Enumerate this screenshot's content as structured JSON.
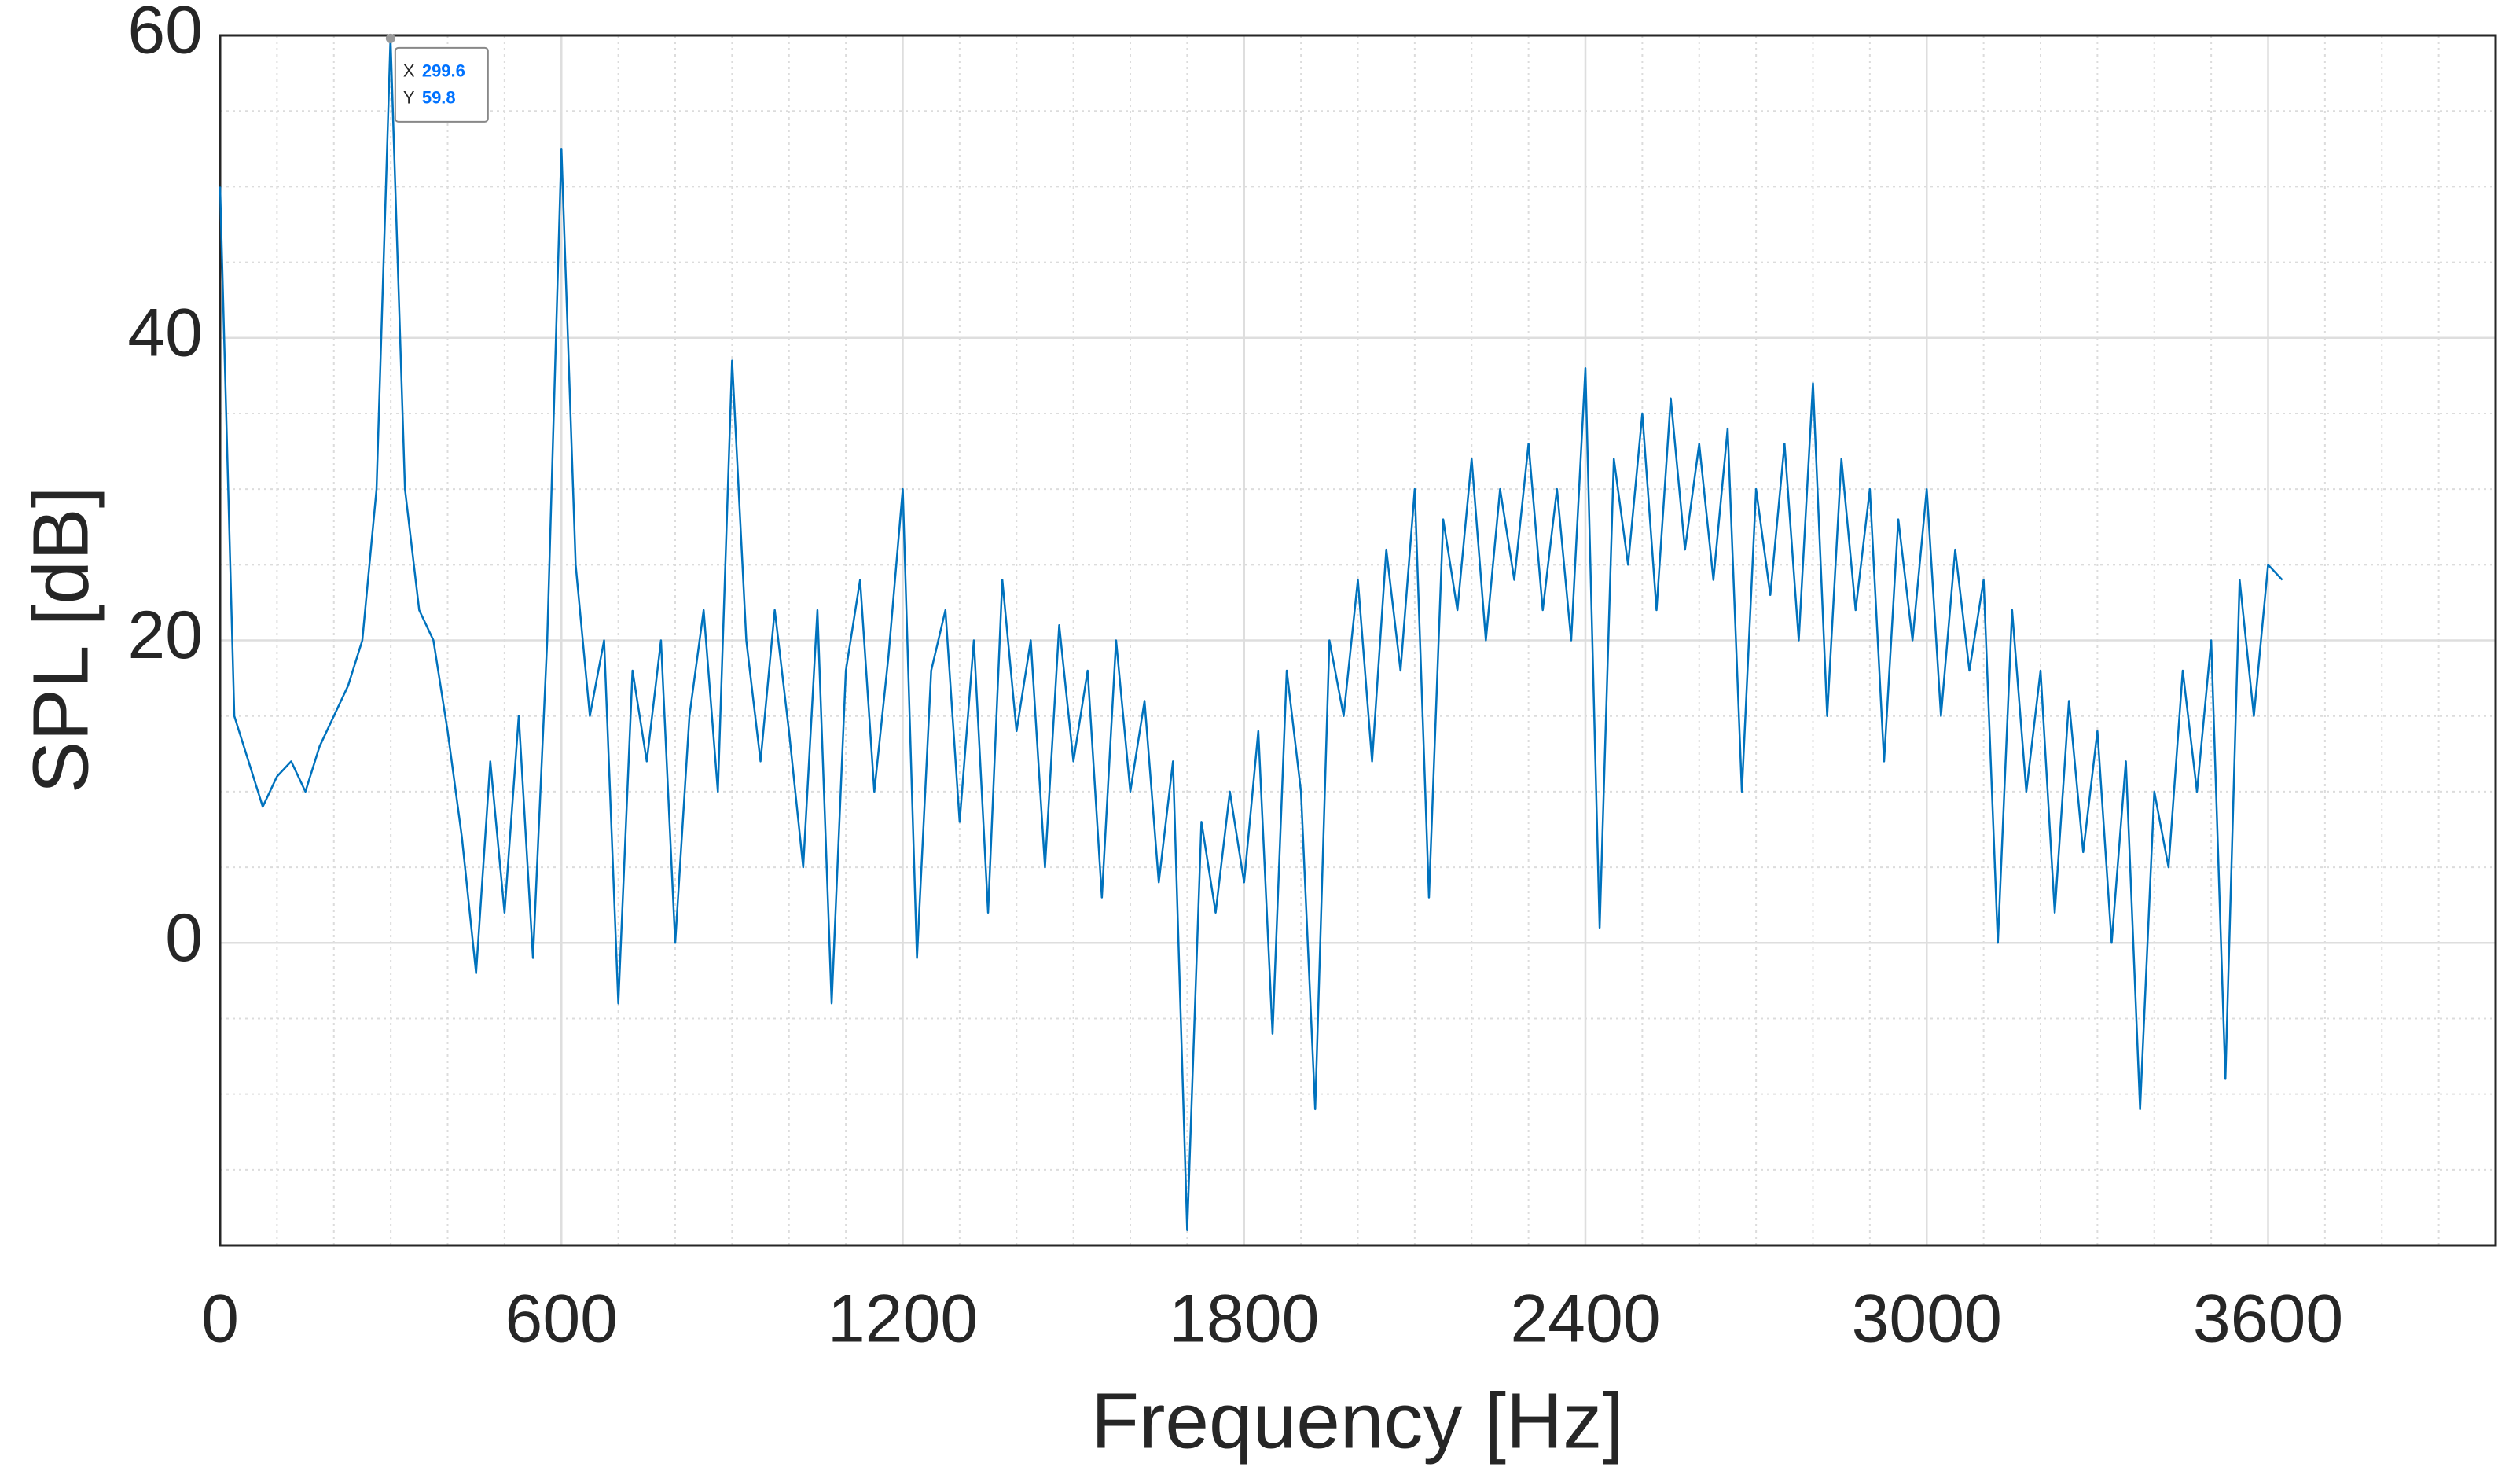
{
  "chart_data": {
    "type": "line",
    "xlabel": "Frequency [Hz]",
    "ylabel": "SPL [dB]",
    "xlim": [
      0,
      4000
    ],
    "xticks": [
      0,
      600,
      1200,
      1800,
      2400,
      3000,
      3600
    ],
    "ylim": [
      -20,
      60
    ],
    "yticks": [
      0,
      20,
      40,
      60
    ],
    "grid": true,
    "minor_grid": true,
    "series": [
      {
        "color": "#0072bd",
        "x": [
          0,
          25,
          50,
          75,
          100,
          125,
          150,
          175,
          200,
          225,
          250,
          275,
          299.6,
          325,
          350,
          375,
          400,
          425,
          450,
          475,
          500,
          525,
          550,
          575,
          600,
          625,
          650,
          675,
          700,
          725,
          750,
          775,
          800,
          825,
          850,
          875,
          900,
          925,
          950,
          975,
          1000,
          1025,
          1050,
          1075,
          1100,
          1125,
          1150,
          1175,
          1200,
          1225,
          1250,
          1275,
          1300,
          1325,
          1350,
          1375,
          1400,
          1425,
          1450,
          1475,
          1500,
          1525,
          1550,
          1575,
          1600,
          1625,
          1650,
          1675,
          1700,
          1725,
          1750,
          1775,
          1800,
          1825,
          1850,
          1875,
          1900,
          1925,
          1950,
          1975,
          2000,
          2025,
          2050,
          2075,
          2100,
          2125,
          2150,
          2175,
          2200,
          2225,
          2250,
          2275,
          2300,
          2325,
          2350,
          2375,
          2400,
          2425,
          2450,
          2475,
          2500,
          2525,
          2550,
          2575,
          2600,
          2625,
          2650,
          2675,
          2700,
          2725,
          2750,
          2775,
          2800,
          2825,
          2850,
          2875,
          2900,
          2925,
          2950,
          2975,
          3000,
          3025,
          3050,
          3075,
          3100,
          3125,
          3150,
          3175,
          3200,
          3225,
          3250,
          3275,
          3300,
          3325,
          3350,
          3375,
          3400,
          3425,
          3450,
          3475,
          3500,
          3525,
          3550,
          3575,
          3600,
          3625
        ],
        "values": [
          50,
          15,
          12,
          9,
          11,
          12,
          10,
          13,
          15,
          17,
          20,
          30,
          59.8,
          30,
          22,
          20,
          14,
          7,
          -2,
          12,
          2,
          15,
          -1,
          20,
          52.5,
          25,
          15,
          20,
          -4,
          18,
          12,
          20,
          0,
          15,
          22,
          10,
          38.5,
          20,
          12,
          22,
          14,
          5,
          22,
          -4,
          18,
          24,
          10,
          19,
          30,
          -1,
          18,
          22,
          8,
          20,
          2,
          24,
          14,
          20,
          5,
          21,
          12,
          18,
          3,
          20,
          10,
          16,
          4,
          12,
          -19,
          8,
          2,
          10,
          4,
          14,
          -6,
          18,
          10,
          -11,
          20,
          15,
          24,
          12,
          26,
          18,
          30,
          3,
          28,
          22,
          32,
          20,
          30,
          24,
          33,
          22,
          30,
          20,
          38,
          1,
          32,
          25,
          35,
          22,
          36,
          26,
          33,
          24,
          34,
          10,
          30,
          23,
          33,
          20,
          37,
          15,
          32,
          22,
          30,
          12,
          28,
          20,
          30,
          15,
          26,
          18,
          24,
          0,
          22,
          10,
          18,
          2,
          16,
          6,
          14,
          0,
          12,
          -11,
          10,
          5,
          18,
          10,
          20,
          -9,
          24,
          15,
          25,
          24
        ]
      }
    ],
    "datatip": {
      "x_label": "X",
      "x": 299.6,
      "y_label": "Y",
      "y": 59.8
    }
  }
}
